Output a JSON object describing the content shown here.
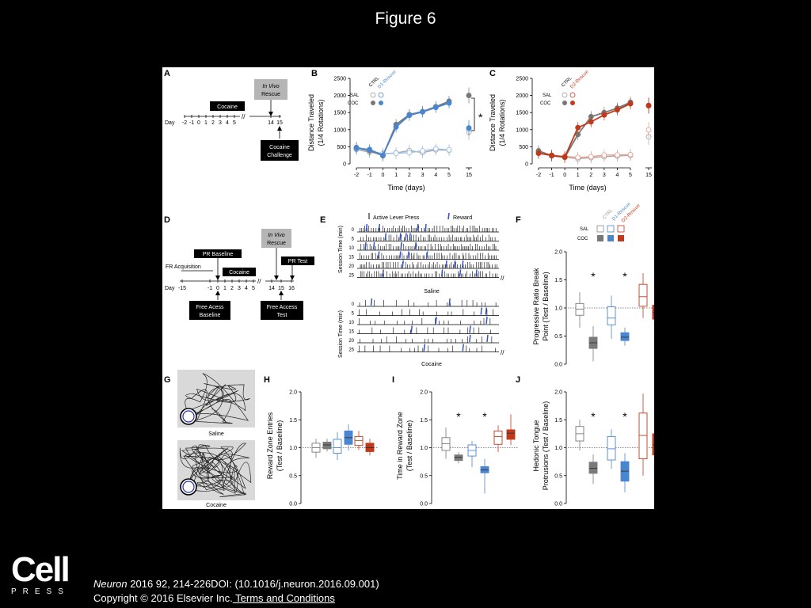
{
  "title": "Figure 6",
  "panels": {
    "A": {
      "letter": "A",
      "in_vivo_line1": "In Vivo",
      "in_vivo_line2": "Rescue",
      "treatment": "Cocaine",
      "day_label": "Day",
      "days": [
        "-2",
        "-1",
        "0",
        "1",
        "2",
        "3",
        "4",
        "5",
        "14",
        "15"
      ],
      "challenge_line1": "Cocaine",
      "challenge_line2": "Challenge"
    },
    "B": {
      "letter": "B",
      "legend_ctrl": "CTRL",
      "legend_rescue": "D1-Rescue",
      "legend_sal": "SAL",
      "legend_coc": "COC"
    },
    "C": {
      "letter": "C",
      "legend_ctrl": "CTRL",
      "legend_rescue": "D2-Rescue",
      "legend_sal": "SAL",
      "legend_coc": "COC"
    },
    "D": {
      "letter": "D",
      "in_vivo_line1": "In Vivo",
      "in_vivo_line2": "Rescue",
      "pr_baseline": "PR Baseline",
      "pr_test": "PR Test",
      "fr_acq": "FR Acquisition",
      "treatment": "Cocaine",
      "day_label": "Day",
      "days": [
        "-15",
        "-1",
        "0",
        "1",
        "2",
        "3",
        "4",
        "5",
        "14",
        "15",
        "16"
      ],
      "free_base_line1": "Free Acess",
      "free_base_line2": "Baseline",
      "free_test_line1": "Free Access",
      "free_test_line2": "Test"
    },
    "E": {
      "letter": "E",
      "legend_lever": "Active Lever Press",
      "legend_reward": "Reward",
      "ylabel": "Session Time (min)",
      "rows": [
        "0",
        "5",
        "10",
        "15",
        "20",
        "25"
      ],
      "saline_label": "Saline",
      "cocaine_label": "Cocaine"
    },
    "F": {
      "letter": "F",
      "legend_ctrl": "CTRL",
      "legend_d1": "D1-Rescue",
      "legend_d2": "D2-Rescue",
      "legend_sal": "SAL",
      "legend_coc": "COC",
      "star": "*"
    },
    "G": {
      "letter": "G",
      "saline_label": "Saline",
      "cocaine_label": "Cocaine"
    },
    "H": {
      "letter": "H"
    },
    "I": {
      "letter": "I",
      "star": "*"
    },
    "J": {
      "letter": "J",
      "star": "*"
    }
  },
  "colors": {
    "gray": "#7a7a7a",
    "light_gray": "#b0b0b0",
    "blue": "#4a86d0",
    "red": "#c0391b",
    "light_red": "#e06a50"
  },
  "chart_data": [
    {
      "panel": "B",
      "type": "line",
      "ylabel": "Distance Traveled (1/4 Rotations)",
      "xlabel": "Time (days)",
      "x": [
        -2,
        -1,
        0,
        1,
        2,
        3,
        4,
        5
      ],
      "x_ticks": [
        "-2",
        "-1",
        "0",
        "1",
        "2",
        "3",
        "4",
        "5",
        "15"
      ],
      "ylim": [
        0,
        2500
      ],
      "y_ticks": [
        "0",
        "500",
        "1000",
        "1500",
        "2000",
        "2500"
      ],
      "series": [
        {
          "group": "SAL CTRL",
          "values": [
            420,
            340,
            290,
            320,
            390,
            330,
            410,
            400
          ],
          "day15": 930
        },
        {
          "group": "SAL D1-Rescue",
          "values": [
            440,
            380,
            300,
            310,
            330,
            380,
            440,
            410
          ],
          "day15": 1020
        },
        {
          "group": "COC CTRL",
          "values": [
            480,
            390,
            240,
            1150,
            1440,
            1530,
            1670,
            1830
          ],
          "day15": 2000
        },
        {
          "group": "COC D1-Rescue",
          "values": [
            460,
            420,
            250,
            1080,
            1420,
            1520,
            1650,
            1780
          ],
          "day15": 1050
        }
      ],
      "annotation": "*"
    },
    {
      "panel": "C",
      "type": "line",
      "ylabel": "Distance Traveled (1/4 Rotations)",
      "xlabel": "Time (days)",
      "x": [
        -2,
        -1,
        0,
        1,
        2,
        3,
        4,
        5
      ],
      "x_ticks": [
        "-2",
        "-1",
        "0",
        "1",
        "2",
        "3",
        "4",
        "5",
        "15"
      ],
      "ylim": [
        0,
        2500
      ],
      "y_ticks": [
        "0",
        "500",
        "1000",
        "1500",
        "2000",
        "2500"
      ],
      "series": [
        {
          "group": "SAL CTRL",
          "values": [
            320,
            230,
            200,
            150,
            180,
            210,
            230,
            250
          ],
          "day15": 790
        },
        {
          "group": "SAL D2-Rescue",
          "values": [
            360,
            250,
            220,
            190,
            210,
            260,
            260,
            270
          ],
          "day15": 990
        },
        {
          "group": "COC CTRL",
          "values": [
            380,
            240,
            190,
            860,
            1380,
            1500,
            1630,
            1800
          ],
          "day15": 1710
        },
        {
          "group": "COC D2-Rescue",
          "values": [
            310,
            250,
            200,
            1060,
            1230,
            1430,
            1580,
            1760
          ],
          "day15": 1700
        }
      ]
    },
    {
      "panel": "F",
      "type": "box",
      "ylabel": "Progressive Ratio Break Point (Test / Baseline)",
      "ylim": [
        0,
        2.0
      ],
      "y_ticks": [
        "0.0",
        "0.5",
        "1.0",
        "1.5",
        "2.0"
      ],
      "reference": 1.0,
      "boxes": [
        {
          "group": "SAL CTRL",
          "min": 0.65,
          "q1": 0.87,
          "median": 0.98,
          "q3": 1.08,
          "max": 1.28,
          "style": "open",
          "color": "gray"
        },
        {
          "group": "COC CTRL",
          "min": 0.05,
          "q1": 0.28,
          "median": 0.38,
          "q3": 0.48,
          "max": 0.68,
          "style": "filled",
          "color": "gray"
        },
        {
          "group": "SAL D1-Rescue",
          "min": 0.45,
          "q1": 0.7,
          "median": 0.82,
          "q3": 1.02,
          "max": 1.22,
          "style": "open",
          "color": "blue"
        },
        {
          "group": "COC D1-Rescue",
          "min": 0.33,
          "q1": 0.42,
          "median": 0.48,
          "q3": 0.56,
          "max": 0.65,
          "style": "filled",
          "color": "blue"
        },
        {
          "group": "SAL D2-Rescue",
          "min": 0.82,
          "q1": 1.03,
          "median": 1.2,
          "q3": 1.42,
          "max": 1.62,
          "style": "open",
          "color": "red"
        },
        {
          "group": "COC D2-Rescue",
          "min": 0.6,
          "q1": 0.8,
          "median": 0.92,
          "q3": 1.05,
          "max": 1.25,
          "style": "filled",
          "color": "red"
        }
      ],
      "stars": [
        1,
        3
      ]
    },
    {
      "panel": "H",
      "type": "box",
      "ylabel": "Reward Zone Entries (Test / Baseline)",
      "ylim": [
        0,
        2.0
      ],
      "y_ticks": [
        "0.0",
        "0.5",
        "1.0",
        "1.5",
        "2.0"
      ],
      "reference": 1.0,
      "boxes": [
        {
          "group": "SAL CTRL",
          "min": 0.82,
          "q1": 0.92,
          "median": 1.0,
          "q3": 1.08,
          "max": 1.16,
          "style": "open",
          "color": "gray"
        },
        {
          "group": "COC CTRL",
          "min": 0.93,
          "q1": 0.98,
          "median": 1.05,
          "q3": 1.1,
          "max": 1.16,
          "style": "filled",
          "color": "gray"
        },
        {
          "group": "SAL D1-Rescue",
          "min": 0.78,
          "q1": 0.9,
          "median": 1.0,
          "q3": 1.15,
          "max": 1.28,
          "style": "open",
          "color": "blue"
        },
        {
          "group": "COC D1-Rescue",
          "min": 0.95,
          "q1": 1.06,
          "median": 1.18,
          "q3": 1.3,
          "max": 1.42,
          "style": "filled",
          "color": "blue"
        },
        {
          "group": "SAL D2-Rescue",
          "min": 0.96,
          "q1": 1.04,
          "median": 1.13,
          "q3": 1.2,
          "max": 1.3,
          "style": "open",
          "color": "red"
        },
        {
          "group": "COC D2-Rescue",
          "min": 0.86,
          "q1": 0.93,
          "median": 1.0,
          "q3": 1.08,
          "max": 1.16,
          "style": "filled",
          "color": "red"
        }
      ],
      "stars": []
    },
    {
      "panel": "I",
      "type": "box",
      "ylabel": "Time in Reward Zone (Test / Baseline)",
      "ylim": [
        0,
        2.0
      ],
      "y_ticks": [
        "0.0",
        "0.5",
        "1.0",
        "1.5",
        "2.0"
      ],
      "reference": 1.0,
      "boxes": [
        {
          "group": "SAL CTRL",
          "min": 0.8,
          "q1": 0.95,
          "median": 1.07,
          "q3": 1.18,
          "max": 1.36,
          "style": "open",
          "color": "gray"
        },
        {
          "group": "COC CTRL",
          "min": 0.72,
          "q1": 0.77,
          "median": 0.83,
          "q3": 0.87,
          "max": 0.92,
          "style": "filled",
          "color": "gray"
        },
        {
          "group": "SAL D1-Rescue",
          "min": 0.65,
          "q1": 0.85,
          "median": 0.95,
          "q3": 1.05,
          "max": 1.12,
          "style": "open",
          "color": "blue"
        },
        {
          "group": "COC D1-Rescue",
          "min": 0.18,
          "q1": 0.55,
          "median": 0.6,
          "q3": 0.66,
          "max": 0.8,
          "style": "filled",
          "color": "blue"
        },
        {
          "group": "SAL D2-Rescue",
          "min": 0.92,
          "q1": 1.06,
          "median": 1.2,
          "q3": 1.3,
          "max": 1.4,
          "style": "open",
          "color": "red"
        },
        {
          "group": "COC D2-Rescue",
          "min": 1.05,
          "q1": 1.15,
          "median": 1.26,
          "q3": 1.32,
          "max": 1.6,
          "style": "filled",
          "color": "red"
        }
      ],
      "stars": [
        1,
        3
      ]
    },
    {
      "panel": "J",
      "type": "box",
      "ylabel": "Hedonic Tongue Protrusions (Test / Baseline)",
      "ylim": [
        0,
        2.0
      ],
      "y_ticks": [
        "0.0",
        "0.5",
        "1.0",
        "1.5",
        "2.0"
      ],
      "reference": 1.0,
      "boxes": [
        {
          "group": "SAL CTRL",
          "min": 0.95,
          "q1": 1.12,
          "median": 1.25,
          "q3": 1.38,
          "max": 1.5,
          "style": "open",
          "color": "gray"
        },
        {
          "group": "COC CTRL",
          "min": 0.35,
          "q1": 0.54,
          "median": 0.63,
          "q3": 0.74,
          "max": 0.88,
          "style": "filled",
          "color": "gray"
        },
        {
          "group": "SAL D1-Rescue",
          "min": 0.62,
          "q1": 0.78,
          "median": 0.98,
          "q3": 1.2,
          "max": 1.33,
          "style": "open",
          "color": "blue"
        },
        {
          "group": "COC D1-Rescue",
          "min": 0.2,
          "q1": 0.4,
          "median": 0.58,
          "q3": 0.75,
          "max": 0.9,
          "style": "filled",
          "color": "blue"
        },
        {
          "group": "SAL D2-Rescue",
          "min": 0.5,
          "q1": 0.8,
          "median": 1.22,
          "q3": 1.62,
          "max": 1.97,
          "style": "open",
          "color": "red"
        },
        {
          "group": "COC D2-Rescue",
          "min": 0.6,
          "q1": 0.87,
          "median": 1.05,
          "q3": 1.25,
          "max": 1.45,
          "style": "filled",
          "color": "red"
        }
      ],
      "stars": [
        1,
        3
      ]
    }
  ],
  "footer": {
    "logo_main": "Cell",
    "logo_sub": "PRESS",
    "journal": "Neuron",
    "citation": " 2016 92, 214-226DOI: (10.1016/j.neuron.2016.09.001)",
    "copyright": "Copyright © 2016 Elsevier Inc.",
    "terms": " Terms and Conditions"
  }
}
